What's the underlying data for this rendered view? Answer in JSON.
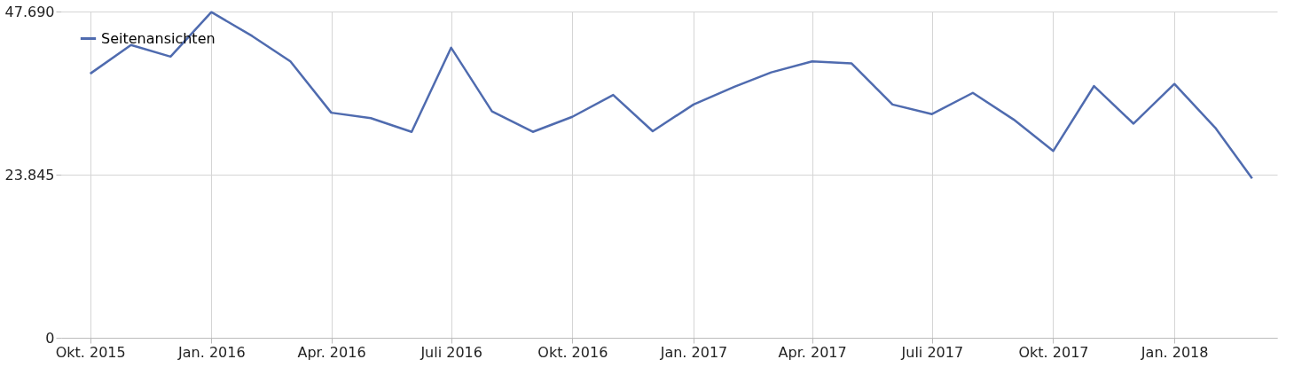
{
  "chart_data": {
    "type": "line",
    "x": [
      "2015-10",
      "2015-11",
      "2015-12",
      "2016-01",
      "2016-02",
      "2016-03",
      "2016-04",
      "2016-05",
      "2016-06",
      "2016-07",
      "2016-08",
      "2016-09",
      "2016-10",
      "2016-11",
      "2016-12",
      "2017-01",
      "2017-02",
      "2017-03",
      "2017-04",
      "2017-05",
      "2017-06",
      "2017-07",
      "2017-08",
      "2017-09",
      "2017-10",
      "2017-11",
      "2017-12",
      "2018-01",
      "2018-02",
      "2018-03"
    ],
    "series": [
      {
        "name": "Seitenansichten",
        "color": "#4f6baf",
        "values": [
          38600,
          42800,
          41100,
          47600,
          44100,
          40400,
          32900,
          32100,
          30100,
          42400,
          33100,
          30100,
          32300,
          35500,
          30200,
          34100,
          36700,
          38800,
          40400,
          40100,
          34100,
          32700,
          35800,
          31900,
          27300,
          36800,
          31300,
          37100,
          30700,
          23300
        ]
      }
    ],
    "xlim": [
      "2015-09-09",
      "2018-03-20"
    ],
    "xticks": [
      {
        "value": "2015-10",
        "label": "Okt. 2015"
      },
      {
        "value": "2016-01",
        "label": "Jan. 2016"
      },
      {
        "value": "2016-04",
        "label": "Apr. 2016"
      },
      {
        "value": "2016-07",
        "label": "Juli 2016"
      },
      {
        "value": "2016-10",
        "label": "Okt. 2016"
      },
      {
        "value": "2017-01",
        "label": "Jan. 2017"
      },
      {
        "value": "2017-04",
        "label": "Apr. 2017"
      },
      {
        "value": "2017-07",
        "label": "Juli 2017"
      },
      {
        "value": "2017-10",
        "label": "Okt. 2017"
      },
      {
        "value": "2018-01",
        "label": "Jan. 2018"
      }
    ],
    "ylim": [
      0,
      47690
    ],
    "yticks": [
      0,
      {
        "value": 23845,
        "label": "23.845"
      },
      {
        "value": 47690,
        "label": "47.690"
      }
    ],
    "grid": true,
    "legend": "top left",
    "marker": "none",
    "line_style": "solid"
  }
}
